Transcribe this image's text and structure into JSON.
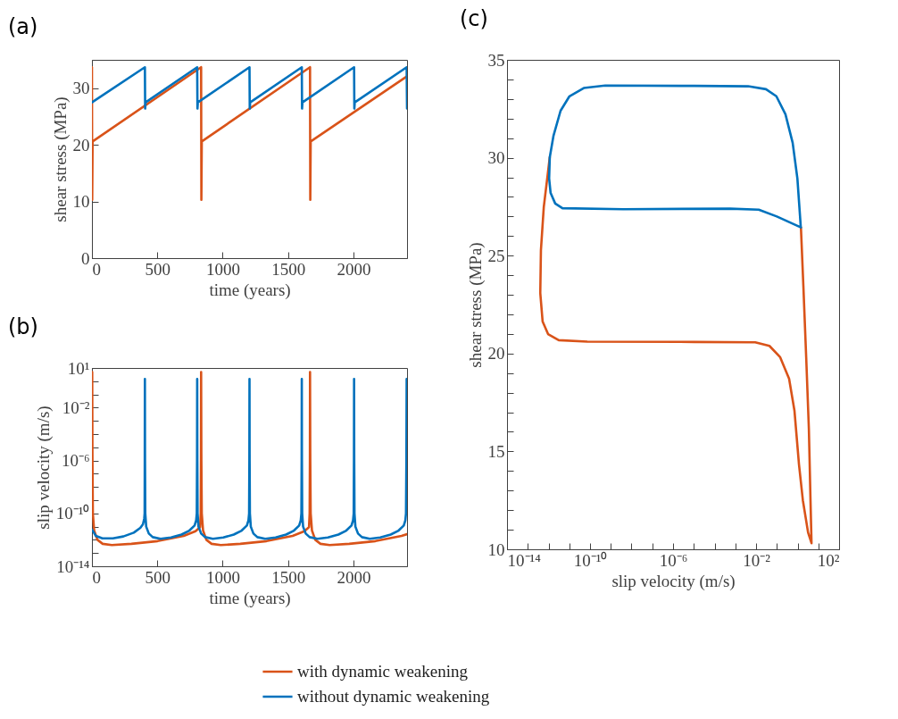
{
  "chart_data": [
    {
      "type": "line",
      "title": "(a)",
      "xlabel": "time (years)",
      "ylabel": "shear stress (MPa)",
      "xlim": [
        0,
        2410
      ],
      "ylim": [
        0,
        35
      ],
      "xticks": [
        0,
        500,
        1000,
        1500,
        2000
      ],
      "yticks": [
        0,
        10,
        20,
        30
      ],
      "series": [
        {
          "color": "#d95319",
          "x": [
            0,
            2,
            5,
            835,
            837,
            840,
            1668,
            1670,
            1673,
            2410
          ],
          "values": [
            33.7,
            10.3,
            20.6,
            33.7,
            10.3,
            20.6,
            33.7,
            10.3,
            20.6,
            32.1
          ]
        },
        {
          "color": "#0072bd",
          "x": [
            0,
            405,
            407,
            410,
            805,
            807,
            810,
            1205,
            1207,
            1210,
            1605,
            1607,
            1610,
            2005,
            2007,
            2010,
            2407,
            2410
          ],
          "values": [
            27.5,
            33.7,
            26.4,
            27.5,
            33.7,
            26.4,
            27.5,
            33.7,
            26.4,
            27.5,
            33.7,
            26.4,
            27.5,
            33.7,
            26.4,
            27.5,
            33.7,
            26.4
          ]
        }
      ]
    },
    {
      "type": "line",
      "title": "(b)",
      "xlabel": "time (years)",
      "ylabel": "slip velocity (m/s)",
      "log": "y",
      "legend": "bottom",
      "xlim": [
        0,
        2410
      ],
      "ylim": [
        1e-14,
        10
      ],
      "xticks": [
        0,
        500,
        1000,
        1500,
        2000
      ],
      "yticks": [
        {
          "value": 1e-14,
          "label": "10⁻¹⁴"
        },
        {
          "value": 1e-13,
          "label": null
        },
        {
          "value": 1e-12,
          "label": null
        },
        {
          "value": 1e-11,
          "label": null
        },
        {
          "value": 1e-10,
          "label": "10⁻¹⁰"
        },
        {
          "value": 1e-09,
          "label": null
        },
        {
          "value": 1e-08,
          "label": null
        },
        {
          "value": 1e-07,
          "label": null
        },
        {
          "value": 1e-06,
          "label": "10⁻⁶"
        },
        {
          "value": 1e-05,
          "label": null
        },
        {
          "value": 0.0001,
          "label": null
        },
        {
          "value": 0.001,
          "label": null
        },
        {
          "value": 0.01,
          "label": "10⁻²"
        },
        {
          "value": 0.1,
          "label": null
        },
        {
          "value": 1,
          "label": null
        },
        {
          "value": 10,
          "label": "10¹"
        }
      ],
      "series": [
        {
          "name": "with dynamic weakening",
          "color": "#d95319",
          "x": [
            0,
            2,
            4,
            7,
            17,
            42,
            82,
            152,
            302,
            502,
            702,
            792,
            827,
            832,
            834,
            835,
            837,
            840,
            850,
            875,
            915,
            985,
            1135,
            1335,
            1535,
            1625,
            1660,
            1665,
            1667,
            1668,
            1670,
            1673,
            1683,
            1708,
            1748,
            1818,
            1968,
            2168,
            2368,
            2410
          ],
          "values": [
            0.001,
            5,
            1e-06,
            1e-10,
            5e-12,
            1e-12,
            5e-13,
            4e-13,
            5e-13,
            8e-13,
            2e-12,
            4.5e-12,
            9e-12,
            1e-10,
            1e-06,
            5,
            1e-06,
            1e-10,
            5e-12,
            1e-12,
            5e-13,
            4e-13,
            5e-13,
            8e-13,
            2e-12,
            4.5e-12,
            9e-12,
            1e-10,
            1e-06,
            5,
            1e-06,
            1e-10,
            5e-12,
            1e-12,
            5e-13,
            4e-13,
            5e-13,
            8e-13,
            2e-12,
            2.7e-12
          ]
        },
        {
          "name": "without dynamic weakening",
          "color": "#0072bd",
          "x": [
            0,
            30,
            80,
            160,
            240,
            320,
            370,
            390,
            400,
            403,
            404,
            405,
            406,
            408,
            415,
            435,
            465,
            525,
            605,
            685,
            745,
            785,
            797,
            802,
            804,
            805,
            806,
            808,
            815,
            835,
            865,
            925,
            1005,
            1085,
            1145,
            1185,
            1197,
            1202,
            1204,
            1205,
            1206,
            1208,
            1215,
            1235,
            1265,
            1325,
            1405,
            1485,
            1545,
            1585,
            1597,
            1602,
            1604,
            1605,
            1606,
            1608,
            1615,
            1635,
            1665,
            1725,
            1805,
            1885,
            1945,
            1985,
            1997,
            2002,
            2004,
            2005,
            2006,
            2008,
            2015,
            2035,
            2065,
            2125,
            2205,
            2285,
            2345,
            2385,
            2397,
            2402,
            2405,
            2407,
            2409,
            2410
          ],
          "values": [
            6e-12,
            2e-12,
            1.3e-12,
            1.3e-12,
            1.8e-12,
            3.5e-12,
            8e-12,
            1.5e-11,
            4e-11,
            1e-10,
            1e-06,
            1.5,
            1e-06,
            1e-10,
            1e-11,
            3e-12,
            1.6e-12,
            1.2e-12,
            1.5e-12,
            2.5e-12,
            5e-12,
            1.2e-11,
            3e-11,
            1e-10,
            1e-06,
            1.5,
            1e-06,
            1e-10,
            1e-11,
            3e-12,
            1.6e-12,
            1.2e-12,
            1.5e-12,
            2.5e-12,
            5e-12,
            1.2e-11,
            3e-11,
            1e-10,
            1e-06,
            1.5,
            1e-06,
            1e-10,
            1e-11,
            3e-12,
            1.6e-12,
            1.2e-12,
            1.5e-12,
            2.5e-12,
            5e-12,
            1.2e-11,
            3e-11,
            1e-10,
            1e-06,
            1.5,
            1e-06,
            1e-10,
            1e-11,
            3e-12,
            1.6e-12,
            1.2e-12,
            1.5e-12,
            2.5e-12,
            5e-12,
            1.2e-11,
            3e-11,
            1e-10,
            1e-06,
            1.5,
            1e-06,
            1e-10,
            1e-11,
            3e-12,
            1.6e-12,
            1.2e-12,
            1.5e-12,
            2.5e-12,
            5e-12,
            1.2e-11,
            3e-11,
            1e-10,
            1e-06,
            1.5,
            1e-06,
            1e-10
          ]
        }
      ]
    },
    {
      "type": "line",
      "title": "(c)",
      "xlabel": "slip velocity (m/s)",
      "ylabel": "shear stress (MPa)",
      "log": "x",
      "xlim": [
        1e-14,
        100
      ],
      "ylim": [
        10,
        35
      ],
      "xticks": [
        {
          "value": 1e-14,
          "label": "10⁻¹⁴"
        },
        {
          "value": 1e-13,
          "label": null
        },
        {
          "value": 1e-12,
          "label": null
        },
        {
          "value": 1e-11,
          "label": null
        },
        {
          "value": 1e-10,
          "label": "10⁻¹⁰"
        },
        {
          "value": 1e-09,
          "label": null
        },
        {
          "value": 1e-08,
          "label": null
        },
        {
          "value": 1e-07,
          "label": null
        },
        {
          "value": 1e-06,
          "label": "10⁻⁶"
        },
        {
          "value": 1e-05,
          "label": null
        },
        {
          "value": 0.0001,
          "label": null
        },
        {
          "value": 0.001,
          "label": null
        },
        {
          "value": 0.01,
          "label": "10⁻²"
        },
        {
          "value": 0.1,
          "label": null
        },
        {
          "value": 1,
          "label": null
        },
        {
          "value": 10,
          "label": null
        },
        {
          "value": 100,
          "label": "10²"
        }
      ],
      "yticks": [
        10,
        {
          "value": 11,
          "label": null
        },
        {
          "value": 12,
          "label": null
        },
        {
          "value": 13,
          "label": null
        },
        {
          "value": 14,
          "label": null
        },
        15,
        {
          "value": 16,
          "label": null
        },
        {
          "value": 17,
          "label": null
        },
        {
          "value": 18,
          "label": null
        },
        {
          "value": 19,
          "label": null
        },
        20,
        {
          "value": 21,
          "label": null
        },
        {
          "value": 22,
          "label": null
        },
        {
          "value": 23,
          "label": null
        },
        {
          "value": 24,
          "label": null
        },
        25,
        {
          "value": 26,
          "label": null
        },
        {
          "value": 27,
          "label": null
        },
        {
          "value": 28,
          "label": null
        },
        {
          "value": 29,
          "label": null
        },
        30,
        {
          "value": 31,
          "label": null
        },
        {
          "value": 32,
          "label": null
        },
        {
          "value": 33,
          "label": null
        },
        {
          "value": 34,
          "label": null
        },
        35
      ],
      "series": [
        {
          "color": "#d95319",
          "x": [
            1.45,
            1.9,
            2.6,
            3.5,
            4.2,
            4.7,
            3.2,
            1.8,
            1.17,
            0.71,
            0.39,
            0.145,
            0.044,
            0.0091,
            1.07e-05,
            7.4e-11,
            3.1e-12,
            9.5e-13,
            5.2e-13,
            4e-13,
            4.3e-13,
            5.9e-13,
            9.5e-13,
            1.15e-12
          ],
          "values": [
            26.44,
            23.46,
            19.81,
            16.15,
            12.5,
            10.31,
            10.86,
            12.5,
            14.33,
            17.07,
            18.71,
            19.81,
            20.39,
            20.57,
            20.59,
            20.61,
            20.68,
            20.99,
            21.63,
            23.09,
            25.28,
            27.48,
            29.3,
            30.03
          ]
        },
        {
          "color": "#0072bd",
          "x": [
            1.45,
            0.1,
            0.0135,
            0.00056,
            4e-09,
            4.7e-12,
            2.1e-12,
            1.26e-12,
            1.07e-12,
            1.15e-12,
            1.74e-12,
            3.8e-12,
            1.02e-11,
            5e-11,
            5.4e-10,
            1.07e-05,
            0.0041,
            0.03,
            0.095,
            0.26,
            0.58,
            0.98,
            1.42
          ],
          "values": [
            26.44,
            27.0,
            27.35,
            27.4,
            27.37,
            27.42,
            27.66,
            28.2,
            28.94,
            30.03,
            31.13,
            32.4,
            33.14,
            33.56,
            33.69,
            33.67,
            33.65,
            33.5,
            33.14,
            32.22,
            30.76,
            28.94,
            26.5
          ]
        }
      ]
    }
  ]
}
